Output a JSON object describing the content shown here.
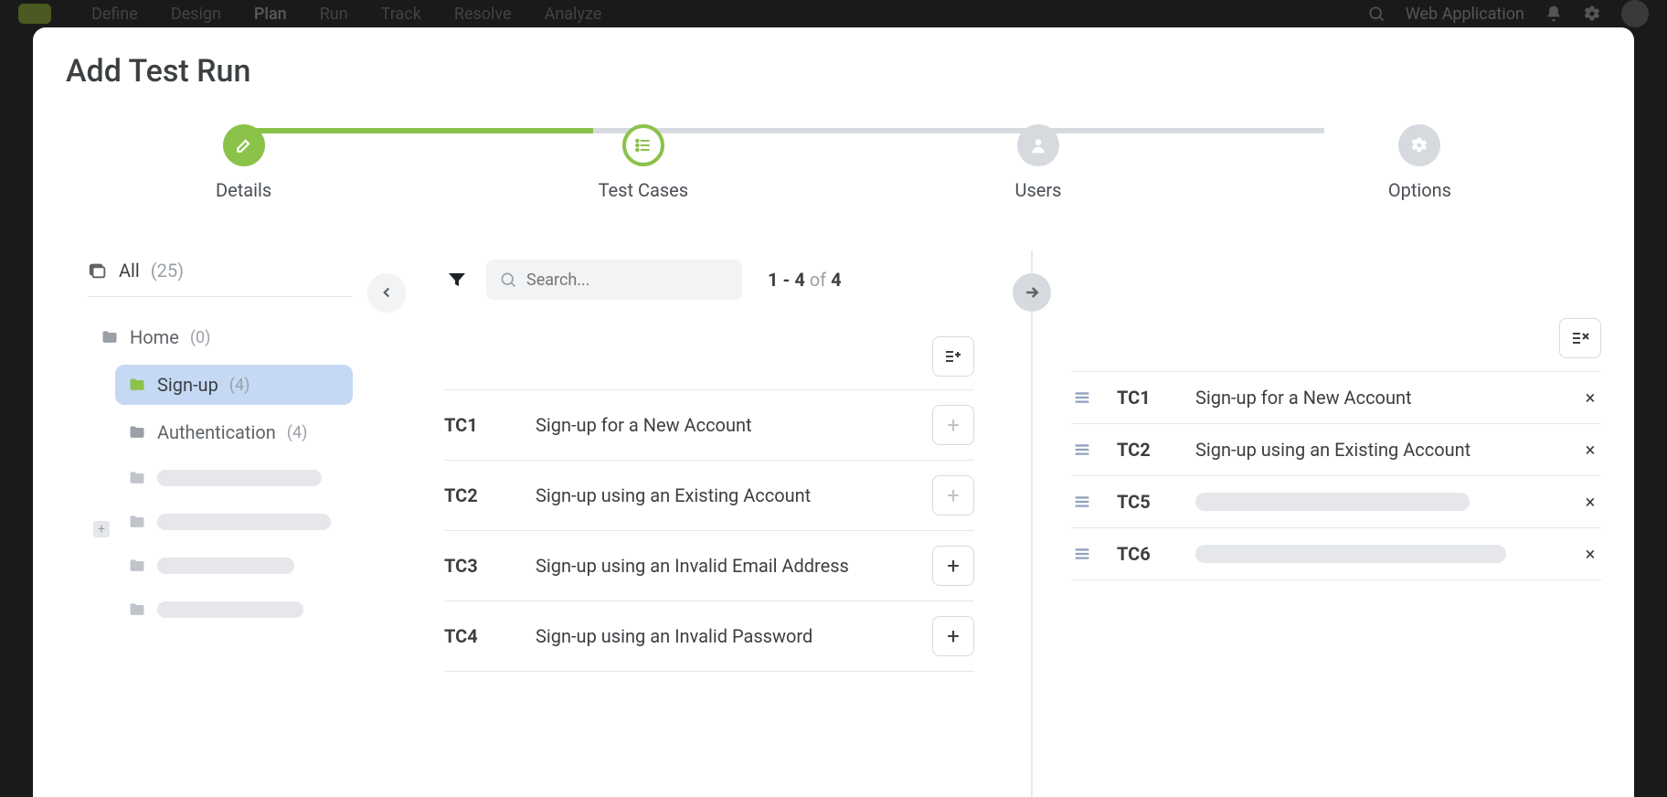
{
  "background": {
    "nav": [
      "Define",
      "Design",
      "Plan",
      "Run",
      "Track",
      "Resolve",
      "Analyze"
    ],
    "nav_active_index": 2,
    "app_label": "Web Application"
  },
  "modal": {
    "title": "Add Test Run",
    "stepper": {
      "steps": [
        {
          "label": "Details",
          "state": "done",
          "icon": "edit"
        },
        {
          "label": "Test Cases",
          "state": "active",
          "icon": "list"
        },
        {
          "label": "Users",
          "state": "pending",
          "icon": "user"
        },
        {
          "label": "Options",
          "state": "pending",
          "icon": "gear"
        }
      ],
      "colors": {
        "done": "#8bc34a",
        "active_border": "#8bc34a",
        "pending": "#d6dadf"
      }
    },
    "tree": {
      "root": {
        "label": "All",
        "count": "(25)"
      },
      "items": [
        {
          "level": 1,
          "label": "Home",
          "count": "(0)",
          "selected": false,
          "skeleton": false
        },
        {
          "level": 2,
          "label": "Sign-up",
          "count": "(4)",
          "selected": true,
          "skeleton": false
        },
        {
          "level": 2,
          "label": "Authentication",
          "count": "(4)",
          "selected": false,
          "skeleton": false
        },
        {
          "level": 2,
          "skeleton": true,
          "skel_class": "w90"
        },
        {
          "level": 2,
          "skeleton": true,
          "skel_class": "w100"
        },
        {
          "level": 2,
          "skeleton": true,
          "skel_class": "w70"
        },
        {
          "level": 2,
          "skeleton": true,
          "skel_class": "w80"
        }
      ]
    },
    "search": {
      "placeholder": "Search..."
    },
    "paging": {
      "from": "1",
      "to": "4",
      "of_label": "of",
      "total": "4"
    },
    "available": [
      {
        "id": "TC1",
        "title": "Sign-up for a New Account",
        "added": true
      },
      {
        "id": "TC2",
        "title": "Sign-up using an Existing Account",
        "added": true
      },
      {
        "id": "TC3",
        "title": "Sign-up using an Invalid Email Address",
        "added": false
      },
      {
        "id": "TC4",
        "title": "Sign-up using an Invalid Password",
        "added": false
      }
    ],
    "selected": [
      {
        "id": "TC1",
        "title": "Sign-up for a New Account",
        "skeleton": false
      },
      {
        "id": "TC2",
        "title": "Sign-up using an Existing Account",
        "skeleton": false
      },
      {
        "id": "TC5",
        "skeleton": true,
        "skel_width": 300
      },
      {
        "id": "TC6",
        "skeleton": true,
        "skel_width": 340
      }
    ]
  },
  "icons": {
    "plus": "+",
    "times": "×"
  }
}
